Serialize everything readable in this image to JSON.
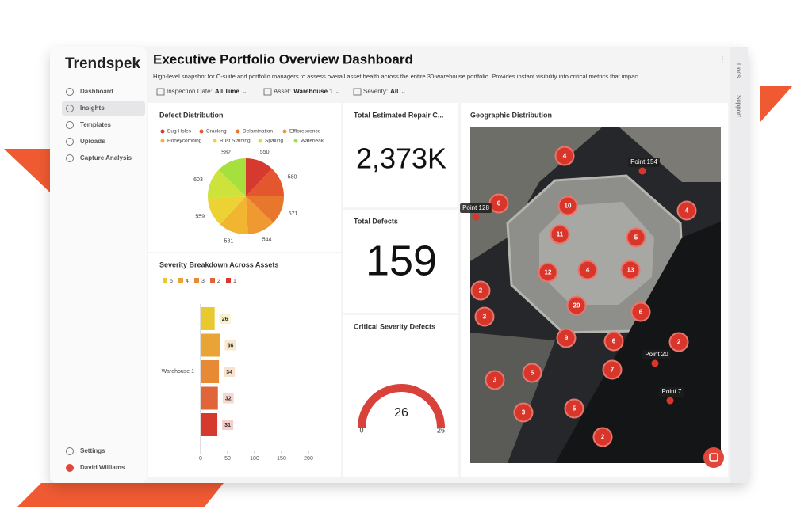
{
  "brand": "Trendspek",
  "nav": [
    "Dashboard",
    "Insights",
    "Templates",
    "Uploads",
    "Capture Analysis"
  ],
  "footer_nav": [
    "Settings",
    "David Williams"
  ],
  "header": {
    "title": "Executive Portfolio Overview Dashboard",
    "description": "High-level snapshot for C-suite and portfolio managers to assess overall asset health across the entire 30-warehouse portfolio. Provides instant visibility into critical metrics that impac..."
  },
  "filters": [
    {
      "label": "Inspection Date:",
      "value": "All Time"
    },
    {
      "label": "Asset:",
      "value": "Warehouse 1"
    },
    {
      "label": "Severity:",
      "value": "All"
    }
  ],
  "side_tabs": [
    "Docs",
    "Support"
  ],
  "defect_distribution": {
    "type": "pie",
    "title": "Defect Distribution",
    "categories": [
      "Bug Holes",
      "Cracking",
      "Delamination",
      "Efflorescence",
      "Honeycombing",
      "Rust Staining",
      "Spalling",
      "Waterleak"
    ],
    "values": [
      550,
      580,
      571,
      544,
      581,
      559,
      603,
      582
    ],
    "colors": [
      "#d63a2f",
      "#e4572e",
      "#e8772e",
      "#ee9a30",
      "#f2b52f",
      "#ecd232",
      "#cde23a",
      "#a6e03f"
    ]
  },
  "severity_breakdown": {
    "type": "bar",
    "orientation": "horizontal",
    "title": "Severity Breakdown Across Assets",
    "categories": [
      "Warehouse 1"
    ],
    "series": [
      {
        "name": "5",
        "color": "#e8c930",
        "values": [
          26
        ]
      },
      {
        "name": "4",
        "color": "#e8a535",
        "values": [
          36
        ]
      },
      {
        "name": "3",
        "color": "#e88a35",
        "values": [
          34
        ]
      },
      {
        "name": "2",
        "color": "#e0653a",
        "values": [
          32
        ]
      },
      {
        "name": "1",
        "color": "#d63a2f",
        "values": [
          31
        ]
      }
    ],
    "xlim": [
      0,
      200
    ],
    "xticks": [
      0,
      50,
      100,
      150,
      200
    ]
  },
  "kpis": [
    {
      "title": "Total Estimated Repair C...",
      "value": "2,373K"
    },
    {
      "title": "Total Defects",
      "value": 159
    }
  ],
  "critical_gauge": {
    "type": "gauge",
    "title": "Critical Severity Defects",
    "value": 26,
    "min": 0,
    "max": 26,
    "color": "#d9423a"
  },
  "map": {
    "title": "Geographic Distribution",
    "clusters": [
      4,
      6,
      10,
      4,
      11,
      5,
      12,
      4,
      13,
      2,
      20,
      6,
      3,
      9,
      6,
      2,
      5,
      7,
      3,
      5,
      3,
      2
    ],
    "points": [
      "Point 154",
      "Point 128",
      "Point 20",
      "Point 7"
    ]
  }
}
